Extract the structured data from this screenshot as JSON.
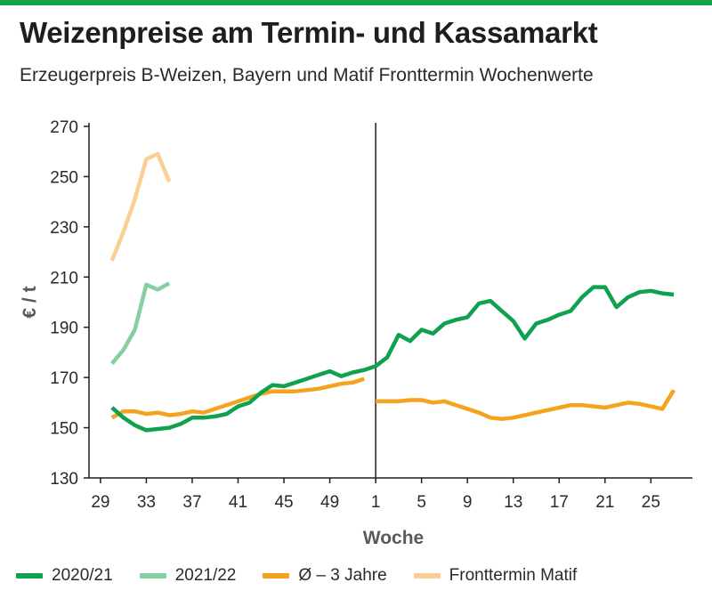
{
  "title": "Weizenpreise am Termin- und Kassamarkt",
  "subtitle": "Erzeugerpreis B-Weizen, Bayern und Matif Fronttermin Wochenwerte",
  "colors": {
    "accent_bar": "#16a34a",
    "s2020": "#0fa14e",
    "s2021": "#86cfa0",
    "savg": "#f5a31f",
    "smatif": "#fbcf93"
  },
  "chart_data": {
    "type": "line",
    "xlabel": "Woche",
    "ylabel": "€ / t",
    "ylim": [
      130,
      270
    ],
    "yticks": [
      130,
      150,
      170,
      190,
      210,
      230,
      250,
      270
    ],
    "x_tick_labels": [
      "29",
      "33",
      "37",
      "41",
      "45",
      "49",
      "1",
      "5",
      "9",
      "13",
      "17",
      "21",
      "25"
    ],
    "x_tick_weeks": [
      29,
      33,
      37,
      41,
      45,
      49,
      53,
      57,
      61,
      65,
      69,
      73,
      77
    ],
    "year_break_week": 53,
    "grid": false,
    "legend": "bottom",
    "series": [
      {
        "name": "2020/21",
        "color_key": "s2020",
        "segments": [
          [
            [
              30,
              158
            ],
            [
              31,
              154
            ],
            [
              32,
              151
            ],
            [
              33,
              149
            ],
            [
              34,
              149.5
            ],
            [
              35,
              150
            ],
            [
              36,
              151.5
            ],
            [
              37,
              154
            ],
            [
              38,
              154
            ],
            [
              39,
              154.5
            ],
            [
              40,
              155.5
            ],
            [
              41,
              158.5
            ],
            [
              42,
              160
            ],
            [
              43,
              164
            ],
            [
              44,
              167
            ],
            [
              45,
              166.5
            ],
            [
              46,
              168
            ],
            [
              47,
              169.5
            ],
            [
              48,
              171
            ],
            [
              49,
              172.5
            ],
            [
              50,
              170.5
            ],
            [
              51,
              172
            ],
            [
              52,
              173
            ],
            [
              53,
              174.5
            ],
            [
              54,
              178
            ],
            [
              55,
              187
            ],
            [
              56,
              184.5
            ],
            [
              57,
              189
            ],
            [
              58,
              187.5
            ],
            [
              59,
              191.5
            ],
            [
              60,
              193
            ],
            [
              61,
              194
            ],
            [
              62,
              199.5
            ],
            [
              63,
              200.5
            ],
            [
              64,
              196.5
            ],
            [
              65,
              192.5
            ],
            [
              66,
              185.5
            ],
            [
              67,
              191.5
            ],
            [
              68,
              193
            ],
            [
              69,
              195
            ],
            [
              70,
              196.5
            ],
            [
              71,
              202
            ],
            [
              72,
              206
            ],
            [
              73,
              206
            ],
            [
              74,
              198
            ],
            [
              75,
              202
            ],
            [
              76,
              204
            ],
            [
              77,
              204.5
            ],
            [
              78,
              203.5
            ],
            [
              79,
              203
            ]
          ]
        ]
      },
      {
        "name": "2021/22",
        "color_key": "s2021",
        "segments": [
          [
            [
              30,
              175.5
            ],
            [
              31,
              181
            ],
            [
              32,
              189
            ],
            [
              33,
              207
            ],
            [
              34,
              205
            ],
            [
              35,
              207.5
            ]
          ]
        ]
      },
      {
        "name": "Ø – 3 Jahre",
        "color_key": "savg",
        "segments": [
          [
            [
              30,
              154
            ],
            [
              31,
              156.5
            ],
            [
              32,
              156.5
            ],
            [
              33,
              155.5
            ],
            [
              34,
              156
            ],
            [
              35,
              155
            ],
            [
              36,
              155.5
            ],
            [
              37,
              156.5
            ],
            [
              38,
              156
            ],
            [
              39,
              157.5
            ],
            [
              40,
              159
            ],
            [
              41,
              160.5
            ],
            [
              42,
              162
            ],
            [
              43,
              163.5
            ],
            [
              44,
              164.5
            ],
            [
              45,
              164.5
            ],
            [
              46,
              164.5
            ],
            [
              47,
              165
            ],
            [
              48,
              165.5
            ],
            [
              49,
              166.5
            ],
            [
              50,
              167.5
            ],
            [
              51,
              168
            ],
            [
              52,
              169.5
            ]
          ],
          [
            [
              53,
              160.5
            ],
            [
              54,
              160.5
            ],
            [
              55,
              160.5
            ],
            [
              56,
              161
            ],
            [
              57,
              161
            ],
            [
              58,
              160
            ],
            [
              59,
              160.5
            ],
            [
              60,
              159
            ],
            [
              61,
              157.5
            ],
            [
              62,
              156
            ],
            [
              63,
              154
            ],
            [
              64,
              153.5
            ],
            [
              65,
              154
            ],
            [
              66,
              155
            ],
            [
              67,
              156
            ],
            [
              68,
              157
            ],
            [
              69,
              158
            ],
            [
              70,
              159
            ],
            [
              71,
              159
            ],
            [
              72,
              158.5
            ],
            [
              73,
              158
            ],
            [
              74,
              159
            ],
            [
              75,
              160
            ],
            [
              76,
              159.5
            ],
            [
              77,
              158.5
            ],
            [
              78,
              157.5
            ],
            [
              79,
              165
            ]
          ]
        ]
      },
      {
        "name": "Fronttermin Matif",
        "color_key": "smatif",
        "segments": [
          [
            [
              30,
              216.5
            ],
            [
              31,
              228
            ],
            [
              32,
              241
            ],
            [
              33,
              257
            ],
            [
              34,
              259
            ],
            [
              35,
              248
            ]
          ]
        ]
      }
    ]
  }
}
